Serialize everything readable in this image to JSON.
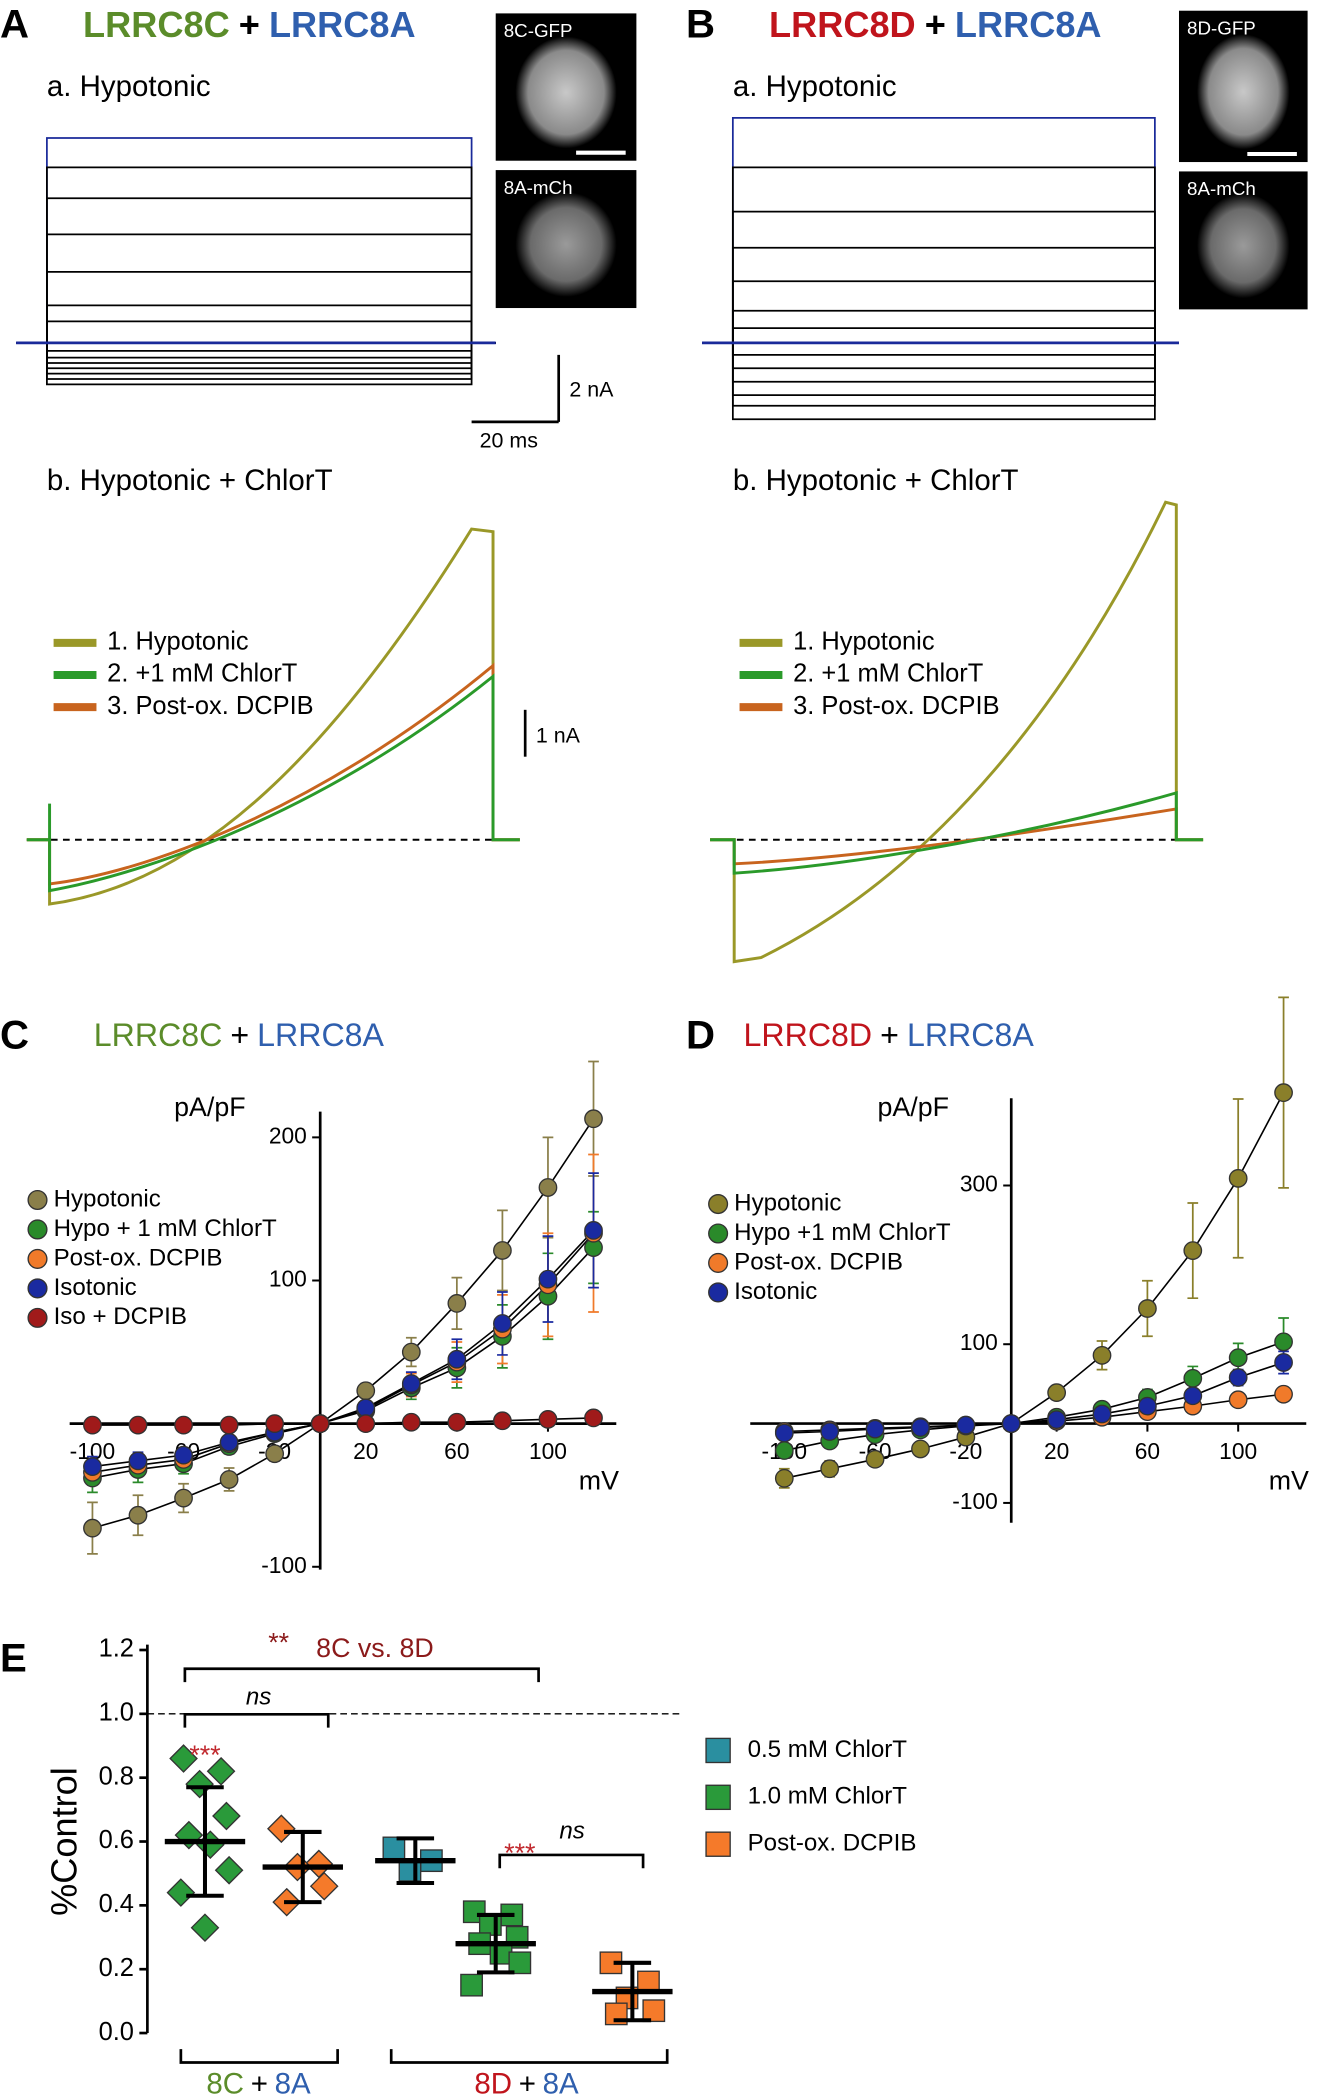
{
  "panel_a": {
    "letter": "A",
    "title": [
      "LRRC8C",
      "+",
      "LRRC8A"
    ],
    "title_colors": [
      "#5b8c2a",
      "#000000",
      "#2f5fae"
    ],
    "sub_a": "a. Hypotonic",
    "sub_b": "b. Hypotonic + ChlorT",
    "images": [
      "8C-GFP",
      "8A-mCh"
    ],
    "scale_bars": [
      "2 nA",
      "20 ms",
      "1 nA"
    ],
    "legend": [
      {
        "name": "1. Hypotonic",
        "color": "#9a9828"
      },
      {
        "name": "2. +1 mM ChlorT",
        "color": "#2a9a2a"
      },
      {
        "name": "3.  Post-ox. DCPIB",
        "color": "#c8641e"
      }
    ]
  },
  "panel_b": {
    "letter": "B",
    "title": [
      "LRRC8D",
      "+",
      "LRRC8A"
    ],
    "title_colors": [
      "#c0141c",
      "#000000",
      "#2f5fae"
    ],
    "sub_a": "a. Hypotonic",
    "sub_b": "b. Hypotonic + ChlorT",
    "images": [
      "8D-GFP",
      "8A-mCh"
    ],
    "legend": [
      {
        "name": "1. Hypotonic",
        "color": "#9a9828"
      },
      {
        "name": "2. +1 mM ChlorT",
        "color": "#2a9a2a"
      },
      {
        "name": "3.  Post-ox. DCPIB",
        "color": "#c8641e"
      }
    ]
  },
  "chart_data": [
    {
      "type": "line",
      "label": "C",
      "title": [
        "LRRC8C",
        "+",
        "LRRC8A"
      ],
      "title_colors": [
        "#5b8c2a",
        "#000000",
        "#2f5fae"
      ],
      "ylabel": "pA/pF",
      "xlabel": "mV",
      "x": [
        -100,
        -80,
        -60,
        -40,
        -20,
        0,
        20,
        40,
        60,
        80,
        100,
        120
      ],
      "xlim": [
        -110,
        130
      ],
      "ylim": [
        -102,
        218
      ],
      "xticks": [
        -100,
        -60,
        -20,
        20,
        60,
        100
      ],
      "yticks": [
        -100,
        100,
        200
      ],
      "series": [
        {
          "name": "Hypotonic",
          "color": "#8a7f4a",
          "values": [
            -73,
            -64,
            -52,
            -39,
            -21,
            0,
            23,
            50,
            84,
            121,
            165,
            213
          ],
          "errors": [
            18,
            14,
            10,
            8,
            5,
            0,
            5,
            10,
            18,
            28,
            35,
            40
          ]
        },
        {
          "name": "Hypo + 1 mM ChlorT",
          "color": "#2a8a2a",
          "values": [
            -38,
            -32,
            -28,
            -16,
            -7,
            0,
            9,
            25,
            39,
            61,
            89,
            123
          ],
          "errors": [
            10,
            9,
            7,
            5,
            3,
            0,
            4,
            8,
            14,
            22,
            30,
            25
          ]
        },
        {
          "name": "Post-ox. DCPIB",
          "color": "#f07a2a",
          "values": [
            -34,
            -29,
            -25,
            -14,
            -6,
            0,
            10,
            27,
            43,
            66,
            97,
            133
          ],
          "errors": [
            8,
            7,
            6,
            5,
            3,
            0,
            4,
            8,
            14,
            24,
            36,
            55
          ]
        },
        {
          "name": "Isotonic",
          "color": "#1a2aa0",
          "values": [
            -30,
            -26,
            -22,
            -13,
            -6,
            0,
            11,
            28,
            45,
            70,
            101,
            135
          ],
          "errors": [
            7,
            6,
            5,
            4,
            3,
            0,
            4,
            8,
            14,
            22,
            30,
            40
          ]
        },
        {
          "name": "Iso + DCPIB",
          "color": "#a01a1a",
          "values": [
            -1,
            -1,
            -1,
            -1,
            0,
            0,
            0,
            1,
            1,
            2,
            3,
            4
          ],
          "errors": [
            0,
            0,
            0,
            0,
            0,
            0,
            0,
            0,
            0,
            0,
            0,
            0
          ]
        }
      ]
    },
    {
      "type": "line",
      "label": "D",
      "title": [
        "LRRC8D",
        "+",
        "LRRC8A"
      ],
      "title_colors": [
        "#c0141c",
        "#000000",
        "#2f5fae"
      ],
      "ylabel": "pA/pF",
      "xlabel": "mV",
      "x": [
        -100,
        -80,
        -60,
        -40,
        -20,
        0,
        20,
        40,
        60,
        80,
        100,
        120
      ],
      "xlim": [
        -115,
        130
      ],
      "ylim": [
        -125,
        410
      ],
      "xticks": [
        -100,
        -60,
        -20,
        20,
        60,
        100
      ],
      "yticks": [
        -100,
        100,
        300
      ],
      "series": [
        {
          "name": "Hypotonic",
          "color": "#8a7f2a",
          "values": [
            -69,
            -57,
            -45,
            -32,
            -17,
            0,
            39,
            86,
            145,
            218,
            309,
            417
          ],
          "errors": [
            12,
            10,
            8,
            6,
            5,
            0,
            8,
            18,
            35,
            60,
            100,
            120
          ]
        },
        {
          "name": "Hypo +1 mM ChlorT",
          "color": "#2a8a2a",
          "values": [
            -34,
            -22,
            -14,
            -8,
            -3,
            0,
            8,
            18,
            33,
            57,
            83,
            103
          ],
          "errors": [
            8,
            6,
            5,
            4,
            3,
            0,
            3,
            6,
            10,
            15,
            18,
            30
          ]
        },
        {
          "name": "Post-ox. DCPIB",
          "color": "#f07a2a",
          "values": [
            -10,
            -8,
            -6,
            -4,
            -2,
            0,
            3,
            8,
            15,
            22,
            30,
            37
          ],
          "errors": [
            3,
            3,
            2,
            2,
            1,
            0,
            2,
            3,
            4,
            5,
            6,
            7
          ]
        },
        {
          "name": "Isotonic",
          "color": "#1a2aa0",
          "values": [
            -12,
            -10,
            -7,
            -5,
            -2,
            0,
            5,
            12,
            22,
            35,
            58,
            77
          ],
          "errors": [
            4,
            3,
            3,
            2,
            2,
            0,
            3,
            4,
            6,
            8,
            10,
            14
          ]
        }
      ]
    },
    {
      "type": "dot",
      "label": "E",
      "ylabel": "%Control",
      "ylim": [
        0,
        1.2
      ],
      "yticks": [
        {
          "value": 0,
          "label": "0.0"
        },
        0.2,
        0.4,
        0.6,
        0.8,
        {
          "value": 1,
          "label": "1.0"
        },
        1.2
      ],
      "reference_line": 1,
      "categories": [
        null,
        null,
        null,
        null,
        null
      ],
      "markers": [
        "diamond",
        "diamond",
        "square",
        "square",
        "square"
      ],
      "series": [
        {
          "name": "0.5 mM ChlorT",
          "color": "#2a8fa0",
          "values": [
            null,
            null,
            [
              0.58,
              0.54,
              0.51
            ],
            null,
            null
          ],
          "means": [
            null,
            null,
            0.54,
            null,
            null
          ],
          "sds": [
            null,
            null,
            0.07,
            null,
            null
          ]
        },
        {
          "name": "1.0 mM ChlorT",
          "color": "#2a9a3a",
          "values": [
            [
              0.86,
              0.82,
              0.78,
              0.68,
              0.62,
              0.59,
              0.51,
              0.44,
              0.33
            ],
            null,
            null,
            [
              0.38,
              0.37,
              0.34,
              0.3,
              0.28,
              0.25,
              0.22,
              0.15
            ],
            null
          ],
          "means": [
            0.6,
            null,
            null,
            0.28,
            null
          ],
          "sds": [
            0.17,
            null,
            null,
            0.09,
            null
          ]
        },
        {
          "name": "Post-ox. DCPIB",
          "color": "#f57a2a",
          "values": [
            null,
            [
              0.64,
              0.53,
              0.52,
              0.46,
              0.41
            ],
            null,
            null,
            [
              0.22,
              0.16,
              0.11,
              0.07,
              0.06
            ]
          ],
          "means": [
            null,
            0.52,
            null,
            null,
            0.13
          ],
          "sds": [
            null,
            0.11,
            null,
            null,
            0.09
          ]
        }
      ],
      "annotations": [
        {
          "text": "**",
          "color": "#8b1a1a"
        },
        {
          "text": "8C vs. 8D",
          "color": "#8b1a1a"
        },
        {
          "text": "ns",
          "color": "#000000"
        },
        {
          "text": "***",
          "color": "#c0282d"
        },
        {
          "text": "***",
          "color": "#c0282d"
        },
        {
          "text": "ns",
          "color": "#000000"
        }
      ],
      "group_labels": [
        {
          "parts": [
            "8C",
            "+",
            "8A"
          ],
          "colors": [
            "#5b8c2a",
            "#000000",
            "#2f5fae"
          ]
        },
        {
          "parts": [
            "8D",
            "+",
            "8A"
          ],
          "colors": [
            "#c0141c",
            "#000000",
            "#2f5fae"
          ]
        }
      ]
    }
  ]
}
